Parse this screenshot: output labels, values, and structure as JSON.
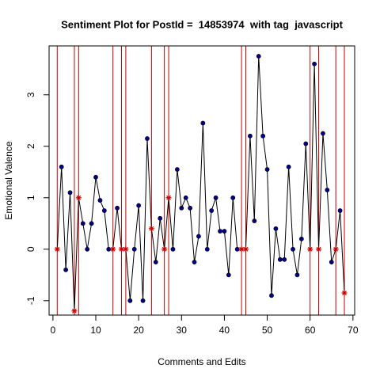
{
  "chart_data": {
    "type": "line",
    "title": "Sentiment Plot for PostId =  14853974  with tag  javascript",
    "x_label": "Comments and Edits",
    "y_label": "Emotional Valence",
    "x": [
      1,
      2,
      3,
      4,
      5,
      6,
      7,
      8,
      9,
      10,
      11,
      12,
      13,
      14,
      15,
      16,
      17,
      18,
      19,
      20,
      21,
      22,
      23,
      24,
      25,
      26,
      27,
      28,
      29,
      30,
      31,
      32,
      33,
      34,
      35,
      36,
      37,
      38,
      39,
      40,
      41,
      42,
      43,
      44,
      45,
      46,
      47,
      48,
      49,
      50,
      51,
      52,
      53,
      54,
      55,
      56,
      57,
      58,
      59,
      60,
      61,
      62,
      63,
      64,
      65,
      66,
      67,
      68
    ],
    "values": [
      0,
      1.6,
      -0.4,
      1.1,
      -1.2,
      1.0,
      0.5,
      0,
      0.5,
      1.4,
      0.95,
      0.75,
      0,
      0,
      0.8,
      0,
      0,
      -1.0,
      0,
      0.85,
      -1.0,
      2.15,
      0.4,
      -0.25,
      0.6,
      0,
      1.0,
      0,
      1.55,
      0.8,
      1.0,
      0.8,
      -0.25,
      0.25,
      2.45,
      0,
      0.75,
      1.0,
      0.35,
      0.35,
      -0.5,
      1.0,
      0,
      0,
      0,
      2.2,
      0.55,
      3.75,
      2.2,
      1.55,
      -0.9,
      0.4,
      -0.2,
      -0.2,
      1.6,
      0,
      -0.5,
      0.2,
      2.05,
      0,
      3.6,
      0,
      2.25,
      1.15,
      -0.25,
      0,
      0.75,
      -0.85
    ],
    "edits": [
      1,
      5,
      6,
      14,
      16,
      17,
      23,
      26,
      27,
      44,
      45,
      60,
      62,
      66,
      68
    ],
    "color": "#000000",
    "point_color": "#00008b",
    "edit_color": "#cc0000",
    "xlim": [
      -0.9,
      70.4
    ],
    "ylim": [
      -1.28,
      3.95
    ],
    "xticks": [
      0,
      10,
      20,
      30,
      40,
      50,
      60,
      70
    ],
    "yticks": [
      -1,
      0,
      1,
      2,
      3
    ]
  }
}
